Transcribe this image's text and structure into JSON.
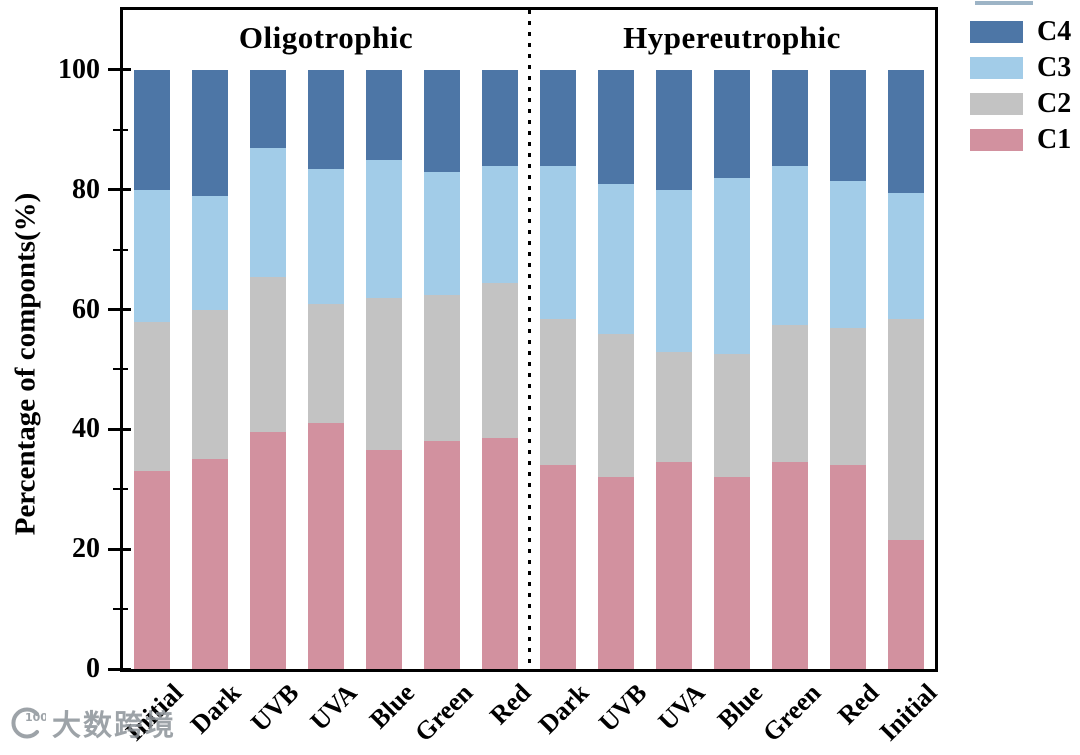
{
  "chart_data": {
    "type": "bar",
    "stacked": true,
    "orientation": "vertical",
    "ylabel": "Percentage of componts(%)",
    "yticks": [
      0,
      20,
      40,
      60,
      80,
      100
    ],
    "minor_yticks": [
      10,
      30,
      50,
      70,
      90
    ],
    "ylim": [
      0,
      110
    ],
    "grid": false,
    "legend_position": "top-right-outside",
    "legend_order": [
      "C4",
      "C3",
      "C2",
      "C1"
    ],
    "section_labels": [
      "Oligotrophic",
      "Hypereutrophic"
    ],
    "separator_after_index": 6,
    "separator_style": "dotted-vertical-line",
    "categories": [
      "Initial",
      "Dark",
      "UVB",
      "UVA",
      "Blue",
      "Green",
      "Red",
      "Dark",
      "UVB",
      "UVA",
      "Blue",
      "Green",
      "Red",
      "Initial"
    ],
    "series": [
      {
        "name": "C1",
        "color": "#d2919f",
        "values": [
          33,
          35,
          39.5,
          41,
          36.5,
          38,
          38.5,
          34,
          32,
          34.5,
          32,
          34.5,
          34,
          21.5
        ]
      },
      {
        "name": "C2",
        "color": "#c3c3c3",
        "values": [
          25,
          25,
          26,
          20,
          25.5,
          24.5,
          26,
          24.5,
          24,
          18.5,
          20.5,
          23,
          23,
          37
        ]
      },
      {
        "name": "C3",
        "color": "#a2cce8",
        "values": [
          22,
          19,
          21.5,
          22.5,
          23,
          20.5,
          19.5,
          25.5,
          25,
          27,
          29.5,
          26.5,
          24.5,
          21
        ]
      },
      {
        "name": "C4",
        "color": "#4d76a6",
        "values": [
          20,
          21,
          13,
          16.5,
          15,
          17,
          16,
          16,
          19,
          20,
          18,
          16,
          18.5,
          20.5
        ]
      }
    ]
  },
  "watermark": {
    "logo": "k100-arc-logo",
    "logo_text": "100",
    "text": "大数跨境",
    "color": "#8d9399"
  }
}
